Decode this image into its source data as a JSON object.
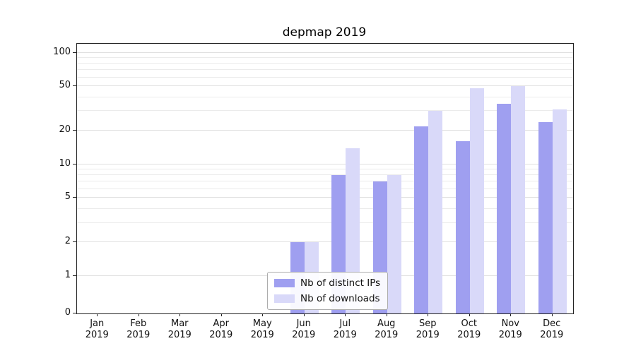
{
  "title": "depmap 2019",
  "chart_data": {
    "type": "bar",
    "categories": [
      "Jan 2019",
      "Feb 2019",
      "Mar 2019",
      "Apr 2019",
      "May 2019",
      "Jun 2019",
      "Jul 2019",
      "Aug 2019",
      "Sep 2019",
      "Oct 2019",
      "Nov 2019",
      "Dec 2019"
    ],
    "series": [
      {
        "name": "Nb of distinct IPs",
        "color": "#9f9ff0",
        "values": [
          0,
          0,
          0,
          0,
          0,
          2,
          8,
          7,
          22,
          16,
          35,
          24
        ]
      },
      {
        "name": "Nb of downloads",
        "color": "#d9d9f9",
        "values": [
          0,
          0,
          0,
          0,
          0,
          2,
          14,
          8,
          30,
          48,
          50,
          31
        ]
      }
    ],
    "yscale": "symlog",
    "y_ticks": [
      0,
      1,
      2,
      5,
      10,
      20,
      50,
      100
    ],
    "y_tick_labels": [
      "0",
      "1",
      "2",
      "5",
      "10",
      "20",
      "50",
      "100"
    ],
    "ylim": [
      0,
      120
    ],
    "grid": "horizontal",
    "legend_position": "lower center"
  }
}
